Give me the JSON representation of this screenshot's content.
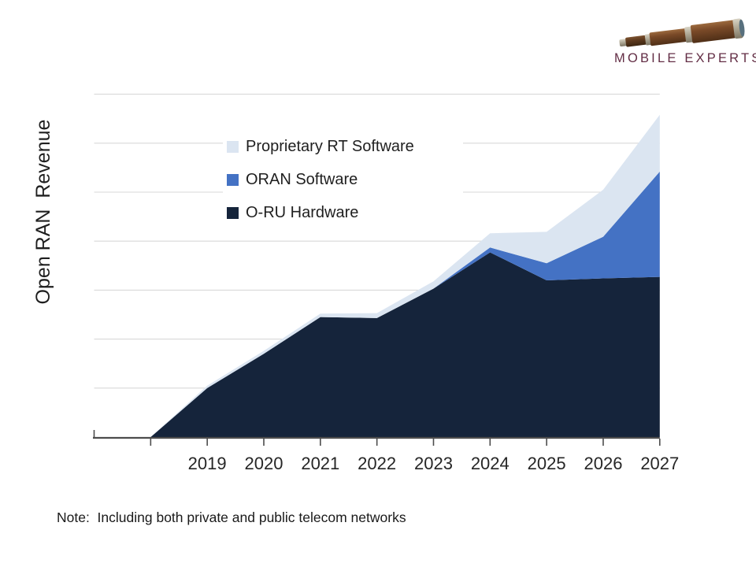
{
  "brand": {
    "name": "MOBILE EXPERTS",
    "color": "#632e45"
  },
  "chart_data": {
    "type": "area",
    "stacked": true,
    "title": "",
    "ylabel": "Open RAN  Revenue",
    "xlabel": "",
    "categories": [
      "2019",
      "2020",
      "2021",
      "2022",
      "2023",
      "2024",
      "2025",
      "2026",
      "2027"
    ],
    "lead_in_zero_points": 2,
    "series": [
      {
        "name": "O-RU Hardware",
        "color": "#15243b",
        "values": [
          1.0,
          1.7,
          2.45,
          2.43,
          3.03,
          3.77,
          3.2,
          3.24,
          3.27
        ]
      },
      {
        "name": "ORAN Software",
        "color": "#4472c4",
        "values": [
          0,
          0,
          0,
          0,
          0,
          0.1,
          0.35,
          0.85,
          2.15
        ]
      },
      {
        "name": "Proprietary RT Software",
        "color": "#dbe5f1",
        "values": [
          0.05,
          0.06,
          0.07,
          0.1,
          0.15,
          0.29,
          0.64,
          0.96,
          1.16
        ]
      }
    ],
    "units": "relative (no y-axis value labels shown)",
    "ylim": [
      0,
      7
    ],
    "y_gridline_step": 1,
    "grid": true,
    "y_tick_labels_shown": false,
    "legend_position": "inside-top-left",
    "legend_order": [
      "Proprietary RT Software",
      "ORAN Software",
      "O-RU Hardware"
    ],
    "gridline_color": "#d9d9d9",
    "axis_color": "#4d4d4d",
    "background": "#ffffff"
  },
  "note": {
    "text": "Note:  Including both private and public telecom networks"
  }
}
